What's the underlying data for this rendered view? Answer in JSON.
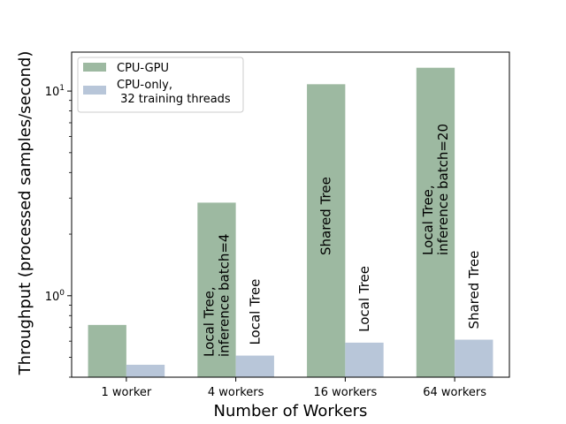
{
  "chart_data": {
    "type": "bar",
    "xlabel": "Number of Workers",
    "ylabel": "Throughput (processed samples/second)",
    "yscale": "log",
    "ylim": [
      0.4,
      15.5
    ],
    "y_major_ticks": [
      {
        "value": 1,
        "label": "10^0"
      },
      {
        "value": 10,
        "label": "10^1"
      }
    ],
    "categories": [
      "1 worker",
      "4 workers",
      "16 workers",
      "64 workers"
    ],
    "series": [
      {
        "name": "CPU-GPU",
        "color": "#9db9a1",
        "values": [
          0.72,
          2.85,
          10.8,
          13.0
        ]
      },
      {
        "name": "CPU-only,\n 32 training threads",
        "color": "#b8c6d9",
        "values": [
          0.46,
          0.51,
          0.59,
          0.61
        ]
      }
    ],
    "annotations": [
      {
        "category_index": 1,
        "series_index": 0,
        "lines": [
          "Local Tree,",
          "inference batch=4"
        ]
      },
      {
        "category_index": 1,
        "series_index": 1,
        "lines": [
          "Local Tree"
        ]
      },
      {
        "category_index": 2,
        "series_index": 0,
        "lines": [
          "Shared Tree"
        ]
      },
      {
        "category_index": 2,
        "series_index": 1,
        "lines": [
          "Local Tree"
        ]
      },
      {
        "category_index": 3,
        "series_index": 0,
        "lines": [
          "Local Tree,",
          "inference batch=20"
        ]
      },
      {
        "category_index": 3,
        "series_index": 1,
        "lines": [
          "Shared Tree"
        ]
      }
    ],
    "legend_position": "upper-left",
    "grid": false
  }
}
